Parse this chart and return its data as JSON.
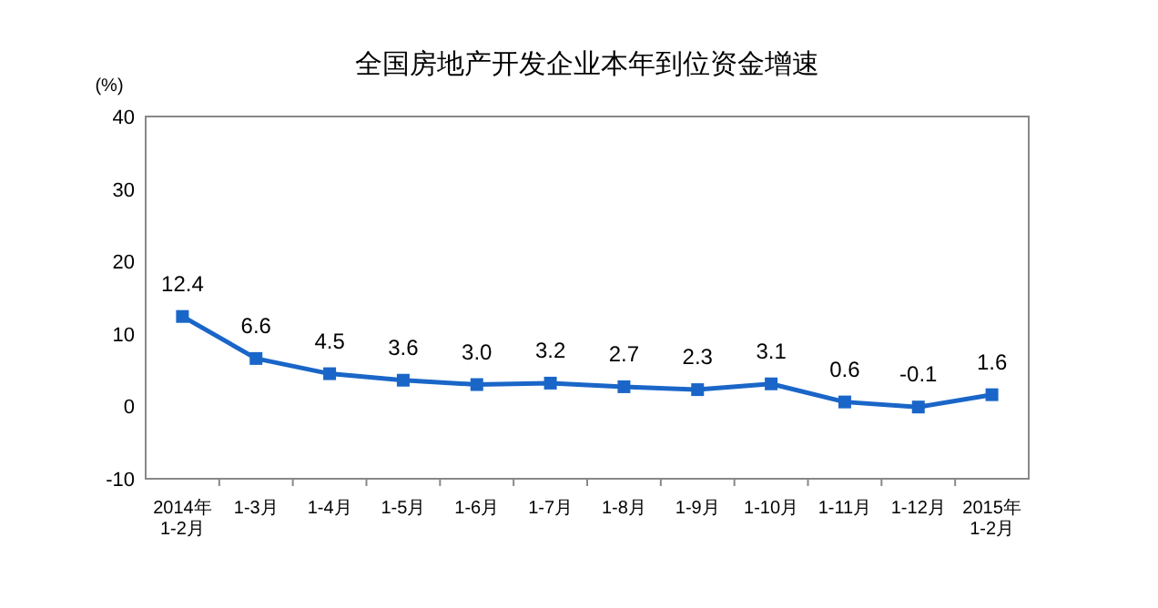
{
  "chart_data": {
    "type": "line",
    "title": "全国房地产开发企业本年到位资金增速",
    "ylabel": "(%)",
    "categories": [
      "2014年\n1-2月",
      "1-3月",
      "1-4月",
      "1-5月",
      "1-6月",
      "1-7月",
      "1-8月",
      "1-9月",
      "1-10月",
      "1-11月",
      "1-12月",
      "2015年\n1-2月"
    ],
    "series": [
      {
        "color": "#1a66c8",
        "values": [
          12.4,
          6.6,
          4.5,
          3.6,
          3.0,
          3.2,
          2.7,
          2.3,
          3.1,
          0.6,
          -0.1,
          1.6
        ],
        "value_labels": [
          "12.4",
          "6.6",
          "4.5",
          "3.6",
          "3.0",
          "3.2",
          "2.7",
          "2.3",
          "3.1",
          "0.6",
          "-0.1",
          "1.6"
        ]
      }
    ],
    "ylim": [
      -10,
      40
    ],
    "yticks": [
      -10,
      0,
      10,
      20,
      30,
      40
    ],
    "marker": "square",
    "line_style": "solid"
  }
}
